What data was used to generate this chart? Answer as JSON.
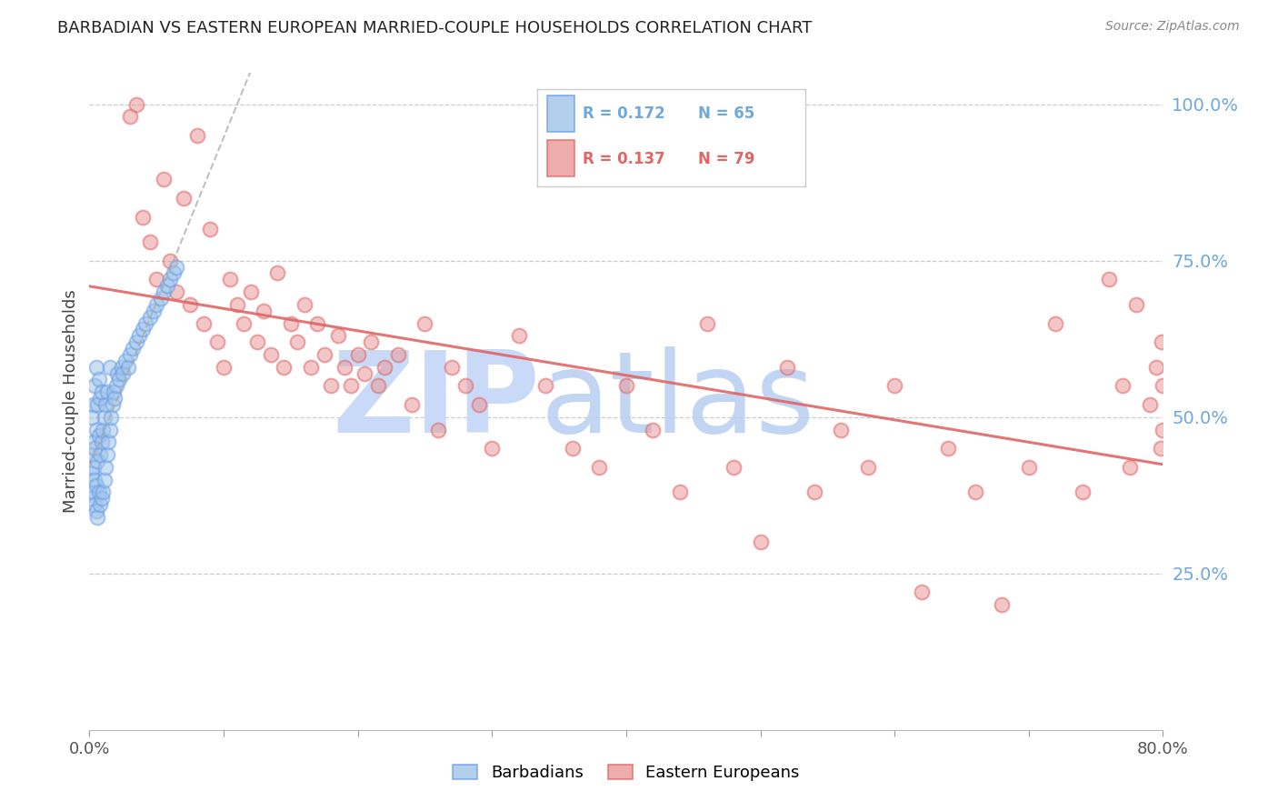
{
  "title": "BARBADIAN VS EASTERN EUROPEAN MARRIED-COUPLE HOUSEHOLDS CORRELATION CHART",
  "source": "Source: ZipAtlas.com",
  "ylabel": "Married-couple Households",
  "y_tick_labels_right": [
    "25.0%",
    "50.0%",
    "75.0%",
    "100.0%"
  ],
  "legend": {
    "barbadians_label": "Barbadians",
    "eastern_label": "Eastern Europeans",
    "barbadians_R": "R = 0.172",
    "barbadians_N": "N = 65",
    "eastern_R": "R = 0.137",
    "eastern_N": "N = 79"
  },
  "blue_color": "#9fc5e8",
  "pink_color": "#ea9999",
  "trend_blue_color": "#6d9eeb",
  "trend_pink_color": "#e06666",
  "title_color": "#222222",
  "right_axis_color": "#6fa8dc",
  "background_color": "#ffffff",
  "grid_color": "#cccccc",
  "xlim": [
    0,
    0.8
  ],
  "ylim": [
    0,
    1.05
  ],
  "x_ticks": [
    0.0,
    0.1,
    0.2,
    0.3,
    0.4,
    0.5,
    0.6,
    0.7,
    0.8
  ],
  "y_ticks_right": [
    0.25,
    0.5,
    0.75,
    1.0
  ],
  "barb_x": [
    0.001,
    0.002,
    0.002,
    0.002,
    0.003,
    0.003,
    0.003,
    0.003,
    0.004,
    0.004,
    0.004,
    0.004,
    0.005,
    0.005,
    0.005,
    0.005,
    0.006,
    0.006,
    0.006,
    0.007,
    0.007,
    0.007,
    0.008,
    0.008,
    0.008,
    0.009,
    0.009,
    0.009,
    0.01,
    0.01,
    0.011,
    0.011,
    0.012,
    0.012,
    0.013,
    0.013,
    0.014,
    0.015,
    0.015,
    0.016,
    0.017,
    0.018,
    0.019,
    0.02,
    0.021,
    0.022,
    0.024,
    0.025,
    0.027,
    0.029,
    0.03,
    0.032,
    0.035,
    0.037,
    0.04,
    0.042,
    0.045,
    0.048,
    0.05,
    0.053,
    0.055,
    0.058,
    0.06,
    0.063,
    0.065
  ],
  "barb_y": [
    0.37,
    0.41,
    0.44,
    0.5,
    0.38,
    0.42,
    0.46,
    0.52,
    0.36,
    0.4,
    0.45,
    0.55,
    0.35,
    0.39,
    0.48,
    0.58,
    0.34,
    0.43,
    0.52,
    0.38,
    0.47,
    0.56,
    0.36,
    0.44,
    0.53,
    0.37,
    0.46,
    0.54,
    0.38,
    0.48,
    0.4,
    0.5,
    0.42,
    0.52,
    0.44,
    0.54,
    0.46,
    0.48,
    0.58,
    0.5,
    0.52,
    0.54,
    0.53,
    0.55,
    0.57,
    0.56,
    0.58,
    0.57,
    0.59,
    0.58,
    0.6,
    0.61,
    0.62,
    0.63,
    0.64,
    0.65,
    0.66,
    0.67,
    0.68,
    0.69,
    0.7,
    0.71,
    0.72,
    0.73,
    0.74
  ],
  "east_x": [
    0.03,
    0.035,
    0.04,
    0.045,
    0.05,
    0.055,
    0.06,
    0.065,
    0.07,
    0.075,
    0.08,
    0.085,
    0.09,
    0.095,
    0.1,
    0.105,
    0.11,
    0.115,
    0.12,
    0.125,
    0.13,
    0.135,
    0.14,
    0.145,
    0.15,
    0.155,
    0.16,
    0.165,
    0.17,
    0.175,
    0.18,
    0.185,
    0.19,
    0.195,
    0.2,
    0.205,
    0.21,
    0.215,
    0.22,
    0.23,
    0.24,
    0.25,
    0.26,
    0.27,
    0.28,
    0.29,
    0.3,
    0.32,
    0.34,
    0.36,
    0.38,
    0.4,
    0.42,
    0.44,
    0.46,
    0.48,
    0.5,
    0.52,
    0.54,
    0.56,
    0.58,
    0.6,
    0.62,
    0.64,
    0.66,
    0.68,
    0.7,
    0.72,
    0.74,
    0.76,
    0.77,
    0.775,
    0.78,
    0.79,
    0.795,
    0.798,
    0.799,
    0.8,
    0.8
  ],
  "east_y": [
    0.98,
    1.0,
    0.82,
    0.78,
    0.72,
    0.88,
    0.75,
    0.7,
    0.85,
    0.68,
    0.95,
    0.65,
    0.8,
    0.62,
    0.58,
    0.72,
    0.68,
    0.65,
    0.7,
    0.62,
    0.67,
    0.6,
    0.73,
    0.58,
    0.65,
    0.62,
    0.68,
    0.58,
    0.65,
    0.6,
    0.55,
    0.63,
    0.58,
    0.55,
    0.6,
    0.57,
    0.62,
    0.55,
    0.58,
    0.6,
    0.52,
    0.65,
    0.48,
    0.58,
    0.55,
    0.52,
    0.45,
    0.63,
    0.55,
    0.45,
    0.42,
    0.55,
    0.48,
    0.38,
    0.65,
    0.42,
    0.3,
    0.58,
    0.38,
    0.48,
    0.42,
    0.55,
    0.22,
    0.45,
    0.38,
    0.2,
    0.42,
    0.65,
    0.38,
    0.72,
    0.55,
    0.42,
    0.68,
    0.52,
    0.58,
    0.45,
    0.62,
    0.48,
    0.55
  ]
}
